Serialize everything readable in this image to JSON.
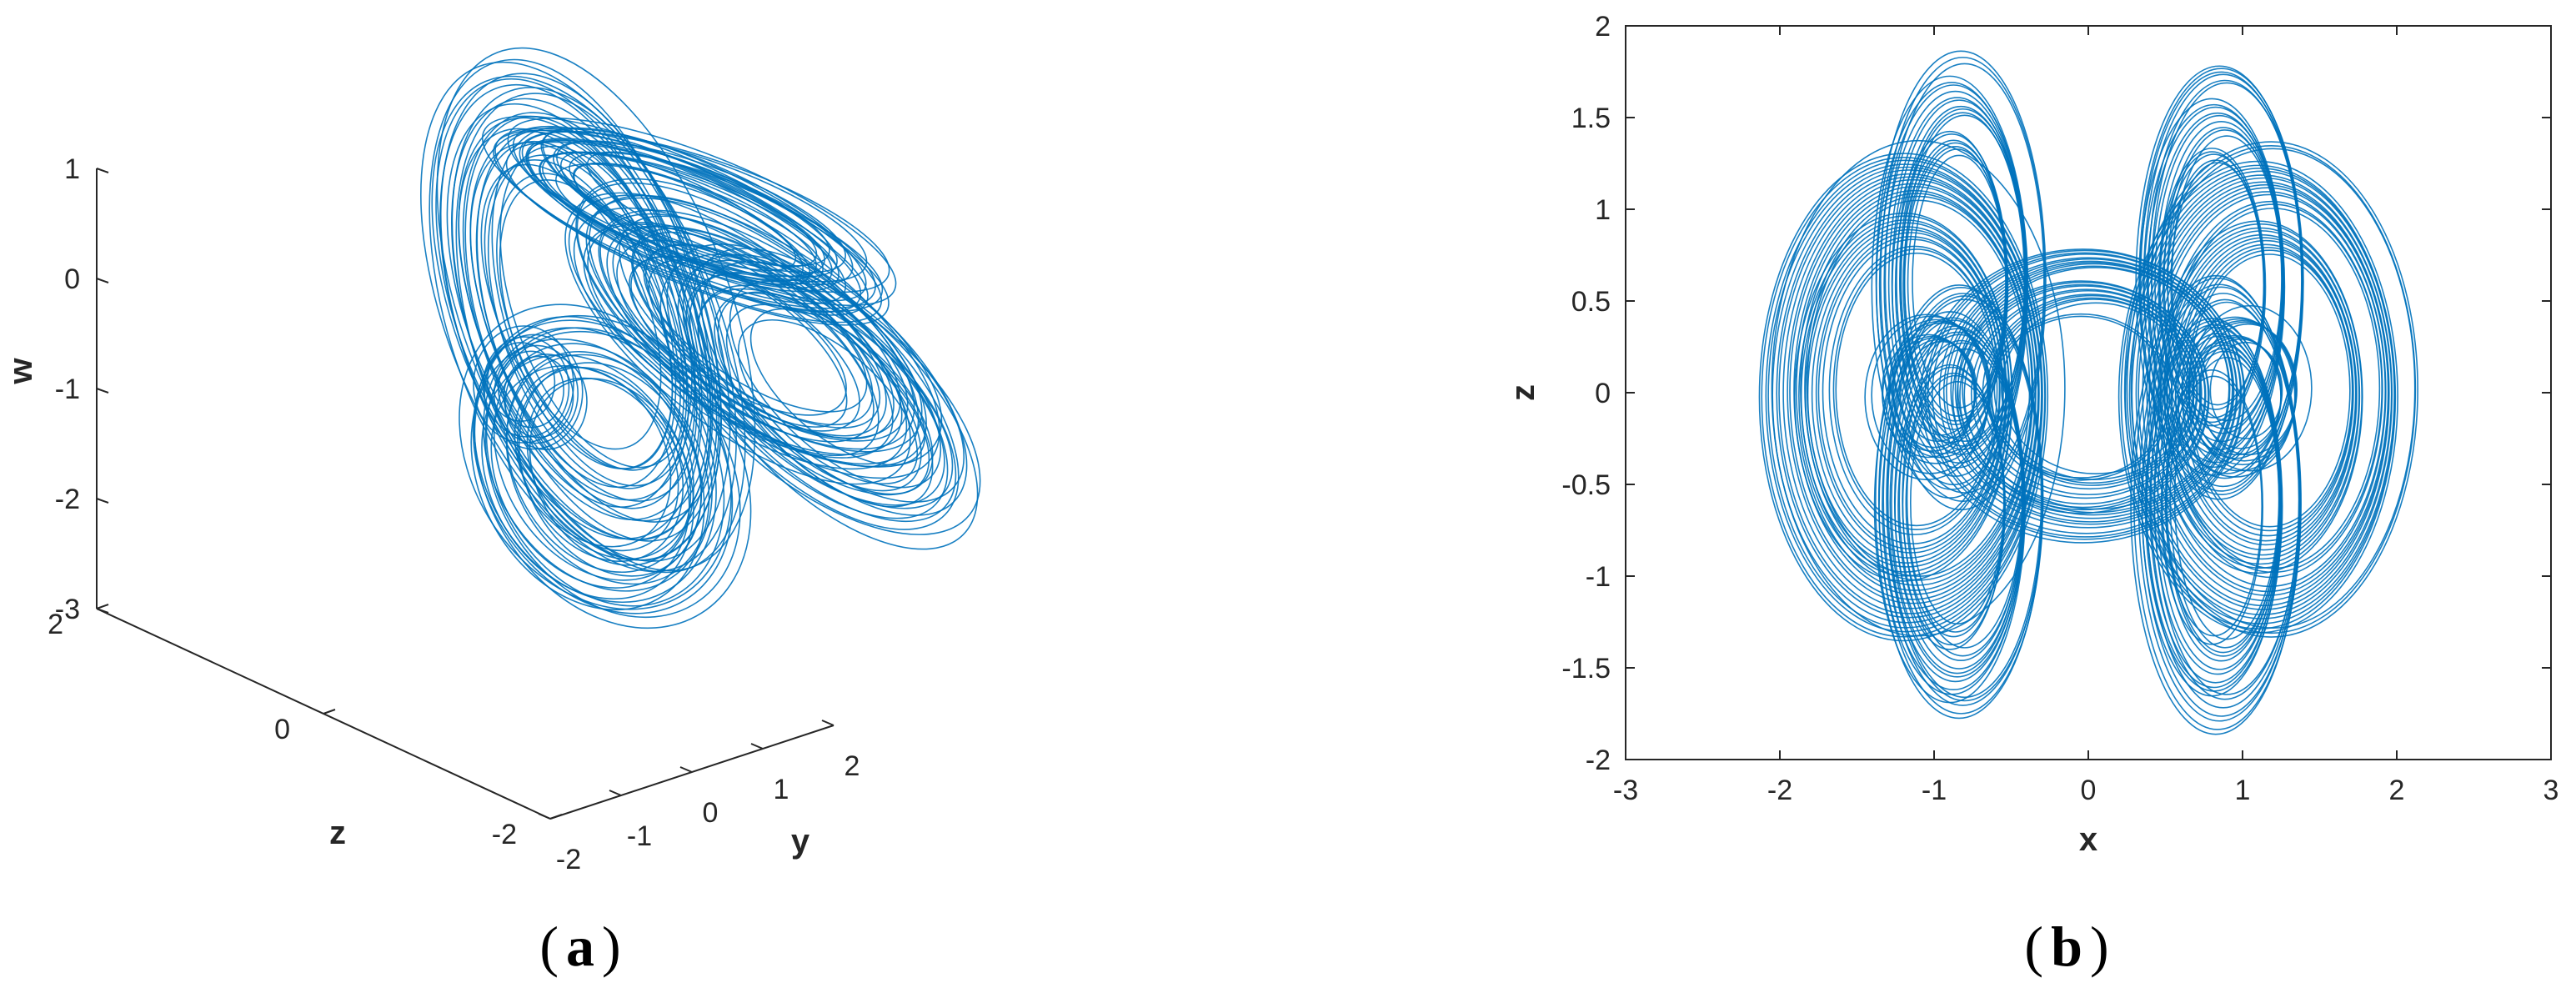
{
  "chart_data": [
    {
      "type": "line",
      "projection": "3d",
      "panel_label": "a",
      "xlabel": "y",
      "ylabel": "z",
      "zlabel": "w",
      "xlim": [
        -2,
        2
      ],
      "ylim": [
        -2,
        2
      ],
      "zlim": [
        -3,
        1
      ],
      "xticks": [
        -2,
        -1,
        0,
        1,
        2
      ],
      "yticks": [
        -2,
        0,
        2
      ],
      "zticks": [
        -3,
        -2,
        -1,
        0,
        1
      ],
      "grid": false,
      "series": [
        {
          "line_color": "#0072BD",
          "description_points": [
            [
              0.3,
              1.0,
              0.8
            ],
            [
              1.2,
              0.2,
              -0.2
            ],
            [
              1.6,
              -0.8,
              -1.4
            ],
            [
              0.8,
              -1.4,
              -1.9
            ],
            [
              -0.6,
              -1.6,
              -2.4
            ],
            [
              -1.6,
              -0.4,
              -1.8
            ],
            [
              -1.2,
              0.9,
              -0.6
            ],
            [
              -0.6,
              1.4,
              0.6
            ]
          ]
        }
      ]
    },
    {
      "type": "line",
      "panel_label": "b",
      "xlabel": "x",
      "ylabel": "z",
      "xlim": [
        -3,
        3
      ],
      "ylim": [
        -2,
        2
      ],
      "xticks": [
        -3,
        -2,
        -1,
        0,
        1,
        2,
        3
      ],
      "yticks": [
        -2,
        -1.5,
        -1,
        -0.5,
        0,
        0.5,
        1,
        1.5,
        2
      ],
      "grid": false,
      "series": [
        {
          "line_color": "#0072BD",
          "description_points": [
            [
              -2.1,
              0
            ],
            [
              -1.5,
              1.4
            ],
            [
              -0.9,
              1.85
            ],
            [
              -0.25,
              0.9
            ],
            [
              -0.25,
              -0.9
            ],
            [
              -0.9,
              -1.85
            ],
            [
              -1.5,
              -1.4
            ],
            [
              0.0,
              0.8
            ],
            [
              0.0,
              -0.7
            ],
            [
              0.25,
              0.9
            ],
            [
              0.9,
              1.8
            ],
            [
              1.5,
              1.4
            ],
            [
              2.1,
              0
            ],
            [
              1.5,
              -1.4
            ],
            [
              0.9,
              -1.8
            ],
            [
              0.25,
              -0.9
            ]
          ]
        }
      ]
    }
  ]
}
